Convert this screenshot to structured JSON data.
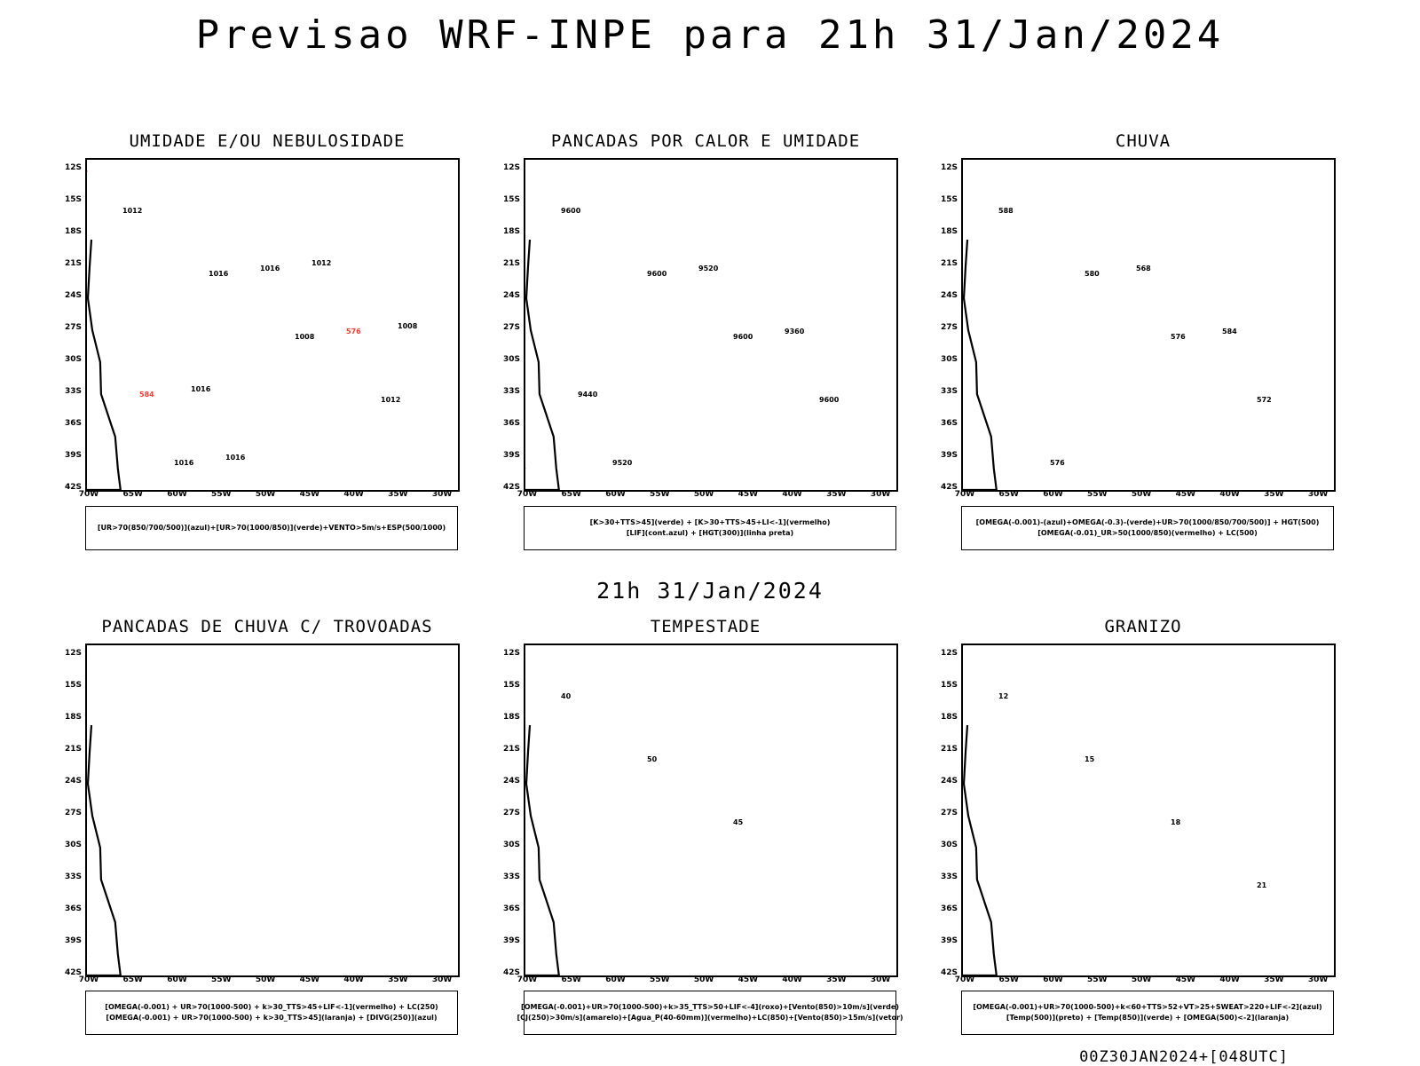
{
  "header": {
    "title": "Previsao WRF-INPE  para 21h 31/Jan/2024"
  },
  "subheader": {
    "title": "21h 31/Jan/2024"
  },
  "footer": {
    "run_code": "00Z30JAN2024+[048UTC]"
  },
  "axes": {
    "lat_labels": [
      "12S",
      "15S",
      "18S",
      "21S",
      "24S",
      "27S",
      "30S",
      "33S",
      "36S",
      "39S",
      "42S"
    ],
    "lon_labels": [
      "70W",
      "65W",
      "60W",
      "55W",
      "50W",
      "45W",
      "40W",
      "35W",
      "30W"
    ]
  },
  "colors": {
    "red": "#ff3b30",
    "green": "#22cc22",
    "blue": "#3355ff",
    "lavender": "#b7b7f0",
    "darkgreen": "#1b3a32",
    "yellow": "#dcd22e",
    "orange": "#f08a2a",
    "purple": "#b020c0"
  },
  "panels": [
    {
      "title": "UMIDADE E/OU NEBULOSIDADE",
      "legend": [
        "[UR>70(850/700/500)](azul)+[UR>70(1000/850)](verde)+VENTO>5m/s+ESP(500/1000)"
      ],
      "labels": [
        "1012",
        "1016",
        "1008",
        "1012",
        "1016",
        "1016",
        "576",
        "584",
        "1016",
        "1012",
        "1008",
        "1016"
      ]
    },
    {
      "title": "PANCADAS POR CALOR E UMIDADE",
      "legend": [
        "[K>30+TTS>45](verde) + [K>30+TTS>45+LI<-1](vermelho)",
        "[LIF](cont.azul) + [HGT(300)](linha preta)"
      ],
      "labels": [
        "9600",
        "9600",
        "9600",
        "9600",
        "9520",
        "9520",
        "9360",
        "9440"
      ]
    },
    {
      "title": "CHUVA",
      "legend": [
        "[OMEGA(-0.001)-(azul)+OMEGA(-0.3)-(verde)+UR>70(1000/850/700/500)] + HGT(500)",
        "[OMEGA(-0.01)_UR>50(1000/850)(vermelho) + LC(500)"
      ],
      "labels": [
        "588",
        "580",
        "576",
        "572",
        "576",
        "568",
        "584"
      ]
    },
    {
      "title": "PANCADAS DE CHUVA C/ TROVOADAS",
      "legend": [
        "[OMEGA(-0.001) + UR>70(1000-500) + k>30_TTS>45+LIF<-1](vermelho) + LC(250)",
        "[OMEGA(-0.001) + UR>70(1000-500) + k>30_TTS>45](laranja) + [DIVG(250)](azul)"
      ],
      "labels": []
    },
    {
      "title": "TEMPESTADE",
      "legend": [
        "[OMEGA(-0.001)+UR>70(1000-500)+k>35_TTS>50+LIF<-4](roxo)+[Vento(850)>10m/s](verde)",
        "[CJ(250)>30m/s](amarelo)+[Agua_P(40-60mm)](vermelho)+LC(850)+[Vento(850)>15m/s](vetor)"
      ],
      "labels": [
        "40",
        "50",
        "45"
      ]
    },
    {
      "title": "GRANIZO",
      "legend": [
        "[OMEGA(-0.001)+UR>70(1000-500)+k<60+TTS>52+VT>25+SWEAT>220+LIF<-2](azul)",
        "[Temp(500)](preto) + [Temp(850)](verde) + [OMEGA(500)<-2](laranja)"
      ],
      "labels": [
        "12",
        "15",
        "18",
        "21"
      ]
    }
  ]
}
